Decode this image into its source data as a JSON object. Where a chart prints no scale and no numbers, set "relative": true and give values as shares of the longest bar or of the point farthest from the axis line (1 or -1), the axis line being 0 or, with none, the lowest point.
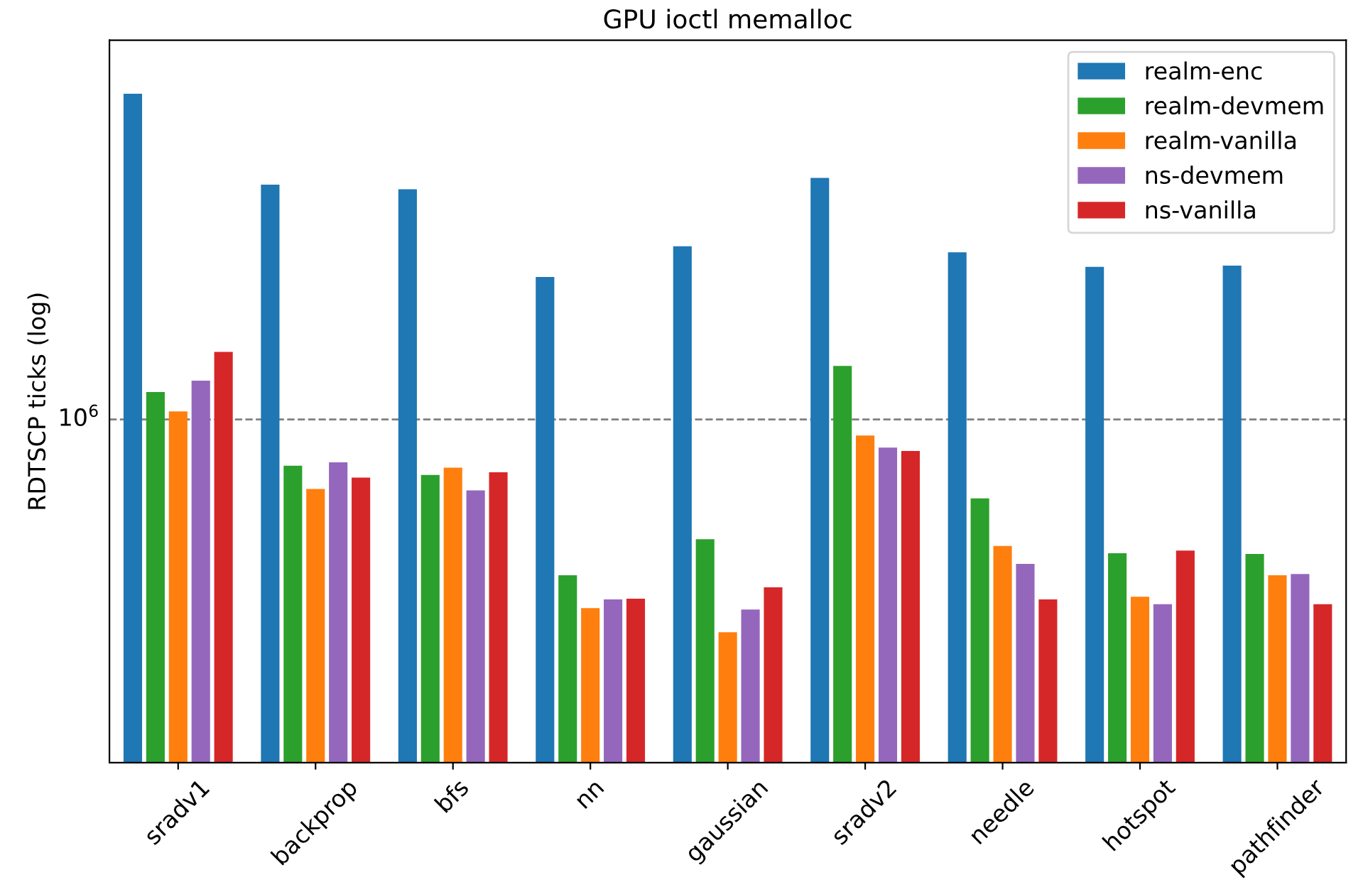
{
  "chart_data": {
    "type": "bar",
    "title": "GPU ioctl memalloc",
    "ylabel": "RDTSCP ticks (log)",
    "categories": [
      "sradv1",
      "backprop",
      "bfs",
      "nn",
      "gaussian",
      "sradv2",
      "needle",
      "hotspot",
      "pathfinder"
    ],
    "relative": true,
    "legend": "top right",
    "annotations": [
      "10$^{6}$"
    ],
    "ref_lines": [
      {
        "axis": "y",
        "value": 0.513,
        "label": null,
        "color": "#808080",
        "line_style": "dashed"
      }
    ],
    "series": [
      {
        "name": "realm-enc",
        "color": "#1f77b4",
        "values": [
          1.0,
          0.864,
          0.857,
          0.726,
          0.772,
          0.874,
          0.763,
          0.741,
          0.743
        ]
      },
      {
        "name": "realm-devmem",
        "color": "#2ca02c",
        "values": [
          0.554,
          0.444,
          0.43,
          0.28,
          0.334,
          0.593,
          0.395,
          0.313,
          0.312
        ]
      },
      {
        "name": "realm-vanilla",
        "color": "#ff7f0e",
        "values": [
          0.525,
          0.409,
          0.441,
          0.231,
          0.195,
          0.489,
          0.324,
          0.248,
          0.28
        ]
      },
      {
        "name": "ns-devmem",
        "color": "#9467bd",
        "values": [
          0.571,
          0.449,
          0.407,
          0.244,
          0.229,
          0.471,
          0.297,
          0.237,
          0.282
        ]
      },
      {
        "name": "ns-vanilla",
        "color": "#d62728",
        "values": [
          0.614,
          0.426,
          0.434,
          0.245,
          0.262,
          0.466,
          0.244,
          0.317,
          0.237
        ]
      }
    ]
  }
}
